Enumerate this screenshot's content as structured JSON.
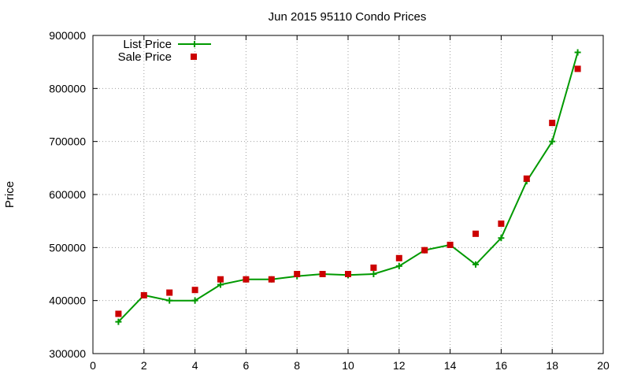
{
  "colors": {
    "list_price": "#009900",
    "sale_price": "#cc0000",
    "grid": "#a0a0a0",
    "axis": "#000000",
    "background": "#ffffff"
  },
  "chart_data": {
    "type": "line",
    "title": "Jun 2015 95110 Condo Prices",
    "xlabel": "",
    "ylabel": "Price",
    "xlim": [
      0,
      20
    ],
    "ylim": [
      300000,
      900000
    ],
    "x_ticks": [
      "0",
      "2",
      "4",
      "6",
      "8",
      "10",
      "12",
      "14",
      "16",
      "18",
      "20"
    ],
    "y_ticks": [
      "300000",
      "400000",
      "500000",
      "600000",
      "700000",
      "800000",
      "900000"
    ],
    "grid": true,
    "legend_position": "top-left",
    "series": [
      {
        "name": "List Price",
        "style": "line-with-plus-markers",
        "x": [
          1,
          2,
          3,
          4,
          5,
          6,
          7,
          8,
          9,
          10,
          11,
          12,
          13,
          14,
          15,
          16,
          17,
          18,
          19
        ],
        "values": [
          360000,
          410000,
          400000,
          400000,
          430000,
          440000,
          440000,
          446000,
          450000,
          448000,
          450000,
          465000,
          495000,
          505000,
          468000,
          518000,
          625000,
          700000,
          868000
        ]
      },
      {
        "name": "Sale Price",
        "style": "square-markers",
        "x": [
          1,
          2,
          3,
          4,
          5,
          6,
          7,
          8,
          9,
          10,
          11,
          12,
          13,
          14,
          15,
          16,
          17,
          18,
          19
        ],
        "values": [
          375000,
          410000,
          415000,
          420000,
          440000,
          440000,
          440000,
          450000,
          450000,
          450000,
          462000,
          480000,
          495000,
          505000,
          526000,
          545000,
          630000,
          735000,
          837000
        ]
      }
    ]
  }
}
